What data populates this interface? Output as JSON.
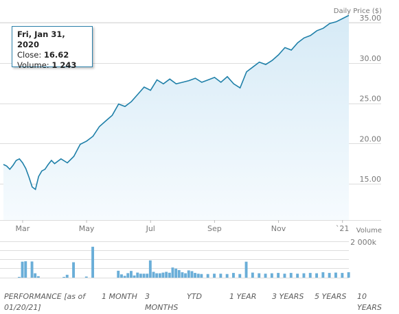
{
  "chart_data": {
    "type": "area",
    "price_label": "Daily Price ($)",
    "volume_label": "Volume",
    "y_ticks": [
      "35.00",
      "30.00",
      "25.00",
      "20.00",
      "15.00"
    ],
    "y_tick_values": [
      35,
      30,
      25,
      20,
      15
    ],
    "ylim": [
      10.5,
      35
    ],
    "volume_tick": "2 000k",
    "volume_ylim": [
      0,
      2000
    ],
    "x_ticks": [
      "Mar",
      "May",
      "Jul",
      "Sep",
      "Nov",
      "`21"
    ],
    "x_tick_positions": [
      2.0,
      4.0,
      6.0,
      8.0,
      10.0,
      12.0
    ],
    "xlim": [
      1.4,
      12.2
    ],
    "grid": true,
    "series": [
      {
        "values": [
          [
            1.4,
            17.4
          ],
          [
            1.5,
            17.2
          ],
          [
            1.6,
            16.8
          ],
          [
            1.7,
            17.3
          ],
          [
            1.8,
            17.9
          ],
          [
            1.9,
            18.1
          ],
          [
            2.0,
            17.6
          ],
          [
            2.1,
            16.9
          ],
          [
            2.2,
            15.8
          ],
          [
            2.3,
            14.6
          ],
          [
            2.4,
            14.3
          ],
          [
            2.5,
            15.9
          ],
          [
            2.6,
            16.6
          ],
          [
            2.7,
            16.8
          ],
          [
            2.8,
            17.4
          ],
          [
            2.9,
            17.9
          ],
          [
            3.0,
            17.5
          ],
          [
            3.2,
            18.1
          ],
          [
            3.4,
            17.6
          ],
          [
            3.6,
            18.4
          ],
          [
            3.8,
            19.9
          ],
          [
            4.0,
            20.3
          ],
          [
            4.2,
            20.9
          ],
          [
            4.4,
            22.1
          ],
          [
            4.6,
            22.8
          ],
          [
            4.8,
            23.5
          ],
          [
            5.0,
            24.9
          ],
          [
            5.2,
            24.6
          ],
          [
            5.4,
            25.2
          ],
          [
            5.6,
            26.1
          ],
          [
            5.8,
            27.0
          ],
          [
            6.0,
            26.6
          ],
          [
            6.2,
            27.9
          ],
          [
            6.4,
            27.4
          ],
          [
            6.6,
            28.0
          ],
          [
            6.8,
            27.4
          ],
          [
            7.0,
            27.6
          ],
          [
            7.2,
            27.8
          ],
          [
            7.4,
            28.1
          ],
          [
            7.6,
            27.6
          ],
          [
            7.8,
            27.9
          ],
          [
            8.0,
            28.2
          ],
          [
            8.2,
            27.6
          ],
          [
            8.4,
            28.3
          ],
          [
            8.6,
            27.4
          ],
          [
            8.8,
            26.9
          ],
          [
            9.0,
            28.9
          ],
          [
            9.2,
            29.5
          ],
          [
            9.4,
            30.1
          ],
          [
            9.6,
            29.8
          ],
          [
            9.8,
            30.3
          ],
          [
            10.0,
            31.0
          ],
          [
            10.2,
            31.9
          ],
          [
            10.4,
            31.6
          ],
          [
            10.6,
            32.5
          ],
          [
            10.8,
            33.1
          ],
          [
            11.0,
            33.4
          ],
          [
            11.2,
            34.0
          ],
          [
            11.4,
            34.3
          ],
          [
            11.6,
            34.9
          ],
          [
            11.8,
            35.1
          ],
          [
            12.0,
            35.5
          ],
          [
            12.2,
            35.9
          ]
        ]
      }
    ],
    "volume_values": [
      [
        1.4,
        0
      ],
      [
        1.5,
        0
      ],
      [
        1.6,
        0
      ],
      [
        1.7,
        0
      ],
      [
        1.8,
        0
      ],
      [
        1.9,
        40
      ],
      [
        2.0,
        880
      ],
      [
        2.1,
        900
      ],
      [
        2.2,
        0
      ],
      [
        2.3,
        890
      ],
      [
        2.4,
        240
      ],
      [
        2.5,
        80
      ],
      [
        2.6,
        0
      ],
      [
        2.7,
        0
      ],
      [
        2.8,
        0
      ],
      [
        2.9,
        0
      ],
      [
        3.0,
        0
      ],
      [
        3.1,
        0
      ],
      [
        3.2,
        0
      ],
      [
        3.3,
        40
      ],
      [
        3.4,
        160
      ],
      [
        3.5,
        0
      ],
      [
        3.6,
        850
      ],
      [
        3.7,
        0
      ],
      [
        3.8,
        0
      ],
      [
        3.9,
        0
      ],
      [
        4.0,
        60
      ],
      [
        4.1,
        0
      ],
      [
        4.2,
        1700
      ],
      [
        4.3,
        0
      ],
      [
        4.4,
        0
      ],
      [
        4.5,
        0
      ],
      [
        4.6,
        0
      ],
      [
        4.7,
        0
      ],
      [
        4.8,
        0
      ],
      [
        4.9,
        0
      ],
      [
        5.0,
        380
      ],
      [
        5.1,
        180
      ],
      [
        5.2,
        100
      ],
      [
        5.3,
        250
      ],
      [
        5.4,
        370
      ],
      [
        5.5,
        120
      ],
      [
        5.6,
        280
      ],
      [
        5.7,
        220
      ],
      [
        5.8,
        220
      ],
      [
        5.9,
        220
      ],
      [
        6.0,
        950
      ],
      [
        6.1,
        320
      ],
      [
        6.2,
        240
      ],
      [
        6.3,
        240
      ],
      [
        6.4,
        280
      ],
      [
        6.5,
        320
      ],
      [
        6.6,
        270
      ],
      [
        6.7,
        560
      ],
      [
        6.8,
        500
      ],
      [
        6.9,
        420
      ],
      [
        7.0,
        300
      ],
      [
        7.1,
        240
      ],
      [
        7.2,
        400
      ],
      [
        7.3,
        360
      ],
      [
        7.4,
        260
      ],
      [
        7.5,
        220
      ],
      [
        7.6,
        200
      ],
      [
        7.8,
        200
      ],
      [
        8.0,
        220
      ],
      [
        8.2,
        220
      ],
      [
        8.4,
        200
      ],
      [
        8.6,
        260
      ],
      [
        8.8,
        200
      ],
      [
        9.0,
        880
      ],
      [
        9.2,
        280
      ],
      [
        9.4,
        240
      ],
      [
        9.6,
        220
      ],
      [
        9.8,
        240
      ],
      [
        10.0,
        260
      ],
      [
        10.2,
        220
      ],
      [
        10.4,
        260
      ],
      [
        10.6,
        220
      ],
      [
        10.8,
        240
      ],
      [
        11.0,
        260
      ],
      [
        11.2,
        240
      ],
      [
        11.4,
        300
      ],
      [
        11.6,
        260
      ],
      [
        11.8,
        280
      ],
      [
        12.0,
        260
      ],
      [
        12.2,
        300
      ]
    ]
  },
  "tooltip": {
    "date": "Fri, Jan 31, 2020",
    "close_label": "Close:",
    "close_value": "16.62",
    "volume_label": "Volume:",
    "volume_value": "1 243"
  },
  "performance": {
    "label_line1": "PERFORMANCE [as of",
    "label_line2": "01/20/21]",
    "buttons": [
      {
        "line1": "1 MONTH",
        "line2": ""
      },
      {
        "line1": "3",
        "line2": "MONTHS"
      },
      {
        "line1": "YTD",
        "line2": ""
      },
      {
        "line1": "1 YEAR",
        "line2": ""
      },
      {
        "line1": "3 YEARS",
        "line2": ""
      },
      {
        "line1": "5 YEARS",
        "line2": ""
      },
      {
        "line1": "10",
        "line2": "YEARS"
      }
    ]
  },
  "colors": {
    "line": "#1e7fa8",
    "area_top": "#d6eaf6",
    "area_bottom": "#f6fbfe",
    "volume_bar": "#6aaed8",
    "grid": "#dcdcdc",
    "axis_text": "#777777"
  }
}
